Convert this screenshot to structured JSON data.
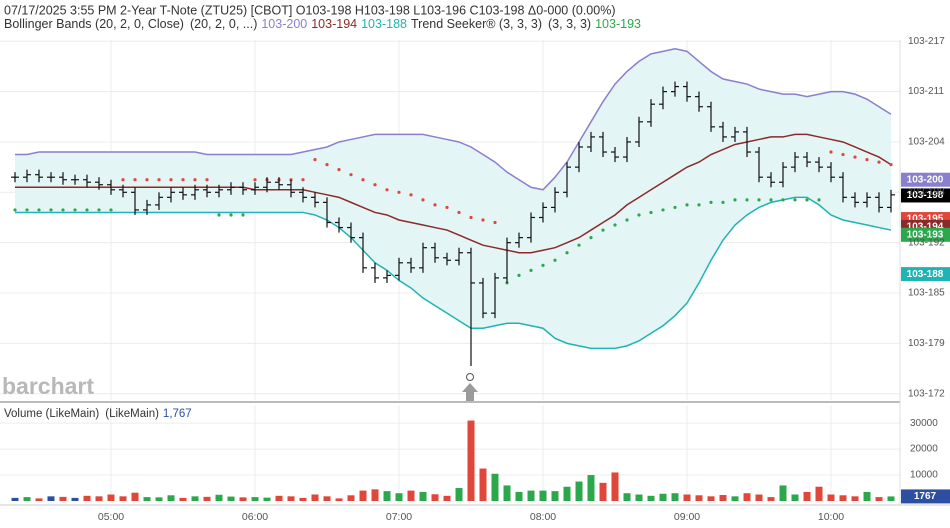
{
  "chart_data": {
    "type": "ohlc",
    "title": "07/17/2025  3:55 PM 2-Year T-Note (ZTU25) [CBOT] O103-198 H103-198 L103-196 C103-198 Δ0-000 (0.00%)",
    "watermark": "barchart",
    "legend": {
      "bb_label": "Bollinger Bands (20, 2, 0, Close)",
      "bb_params": "(20, 2, 0, ...)",
      "upper": "103-200",
      "middle": "103-194",
      "lower": "103-188",
      "trend_label": "Trend Seeker® (3, 3, 3)",
      "trend_params": "(3, 3, 3)",
      "trend": "103-193"
    },
    "categories": [
      null,
      null,
      null,
      null,
      null,
      null,
      null,
      null,
      "05:00",
      null,
      null,
      null,
      null,
      null,
      null,
      null,
      null,
      null,
      null,
      null,
      "06:00",
      null,
      null,
      null,
      null,
      null,
      null,
      null,
      null,
      null,
      null,
      null,
      "07:00",
      null,
      null,
      null,
      null,
      null,
      null,
      null,
      null,
      null,
      null,
      null,
      "08:00",
      null,
      null,
      null,
      null,
      null,
      null,
      null,
      null,
      null,
      null,
      null,
      "09:00",
      null,
      null,
      null,
      null,
      null,
      null,
      null,
      null,
      null,
      null,
      null,
      "10:00",
      null,
      null,
      null,
      null,
      null
    ],
    "open": [
      103.626,
      103.626,
      103.627,
      103.626,
      103.626,
      103.625,
      103.625,
      103.624,
      103.623,
      103.621,
      103.62,
      103.613,
      103.615,
      103.618,
      103.62,
      103.619,
      103.621,
      103.62,
      103.621,
      103.622,
      103.621,
      103.622,
      103.624,
      103.623,
      103.62,
      103.618,
      103.616,
      103.608,
      103.606,
      103.602,
      103.59,
      103.586,
      103.587,
      103.592,
      103.59,
      103.598,
      103.594,
      103.593,
      103.596,
      103.584,
      103.572,
      103.586,
      103.6,
      103.602,
      103.61,
      103.614,
      103.62,
      103.63,
      103.638,
      103.642,
      103.636,
      103.634,
      103.64,
      103.648,
      103.655,
      103.66,
      103.662,
      103.658,
      103.654,
      103.646,
      103.642,
      103.644,
      103.636,
      103.626,
      103.624,
      103.63,
      103.634,
      103.632,
      103.63,
      103.626,
      103.618,
      103.616,
      103.618,
      103.614
    ],
    "high": [
      103.628,
      103.629,
      103.629,
      103.628,
      103.628,
      103.627,
      103.627,
      103.626,
      103.625,
      103.623,
      103.622,
      103.617,
      103.62,
      103.622,
      103.622,
      103.623,
      103.623,
      103.623,
      103.624,
      103.624,
      103.624,
      103.626,
      103.626,
      103.625,
      103.622,
      103.62,
      103.618,
      103.61,
      103.608,
      103.604,
      103.592,
      103.589,
      103.594,
      103.594,
      103.6,
      103.6,
      103.596,
      103.598,
      103.598,
      103.586,
      103.588,
      103.602,
      103.604,
      103.612,
      103.616,
      103.622,
      103.632,
      103.64,
      103.644,
      103.644,
      103.638,
      103.642,
      103.65,
      103.657,
      103.662,
      103.664,
      103.664,
      103.66,
      103.656,
      103.648,
      103.646,
      103.646,
      103.638,
      103.628,
      103.632,
      103.636,
      103.636,
      103.634,
      103.632,
      103.628,
      103.62,
      103.62,
      103.62,
      103.621
    ],
    "low": [
      103.624,
      103.624,
      103.624,
      103.624,
      103.623,
      103.623,
      103.622,
      103.621,
      103.619,
      103.618,
      103.611,
      103.611,
      103.613,
      103.616,
      103.617,
      103.617,
      103.618,
      103.618,
      103.619,
      103.619,
      103.619,
      103.62,
      103.621,
      103.618,
      103.616,
      103.614,
      103.606,
      103.604,
      103.6,
      103.588,
      103.584,
      103.584,
      103.585,
      103.588,
      103.588,
      103.592,
      103.591,
      103.591,
      103.551,
      103.57,
      103.57,
      103.584,
      103.598,
      103.6,
      103.608,
      103.612,
      103.618,
      103.628,
      103.636,
      103.634,
      103.632,
      103.632,
      103.638,
      103.646,
      103.653,
      103.658,
      103.656,
      103.652,
      103.644,
      103.64,
      103.64,
      103.634,
      103.624,
      103.622,
      103.622,
      103.628,
      103.63,
      103.628,
      103.624,
      103.616,
      103.614,
      103.614,
      103.612,
      103.612
    ],
    "close": [
      103.626,
      103.627,
      103.626,
      103.626,
      103.625,
      103.625,
      103.624,
      103.623,
      103.621,
      103.62,
      103.613,
      103.615,
      103.618,
      103.62,
      103.619,
      103.621,
      103.62,
      103.621,
      103.622,
      103.621,
      103.622,
      103.624,
      103.623,
      103.62,
      103.618,
      103.616,
      103.608,
      103.606,
      103.602,
      103.59,
      103.586,
      103.587,
      103.592,
      103.59,
      103.598,
      103.594,
      103.593,
      103.596,
      103.584,
      103.572,
      103.586,
      103.6,
      103.602,
      103.61,
      103.614,
      103.62,
      103.63,
      103.638,
      103.642,
      103.636,
      103.634,
      103.64,
      103.648,
      103.655,
      103.66,
      103.662,
      103.658,
      103.654,
      103.646,
      103.642,
      103.644,
      103.636,
      103.626,
      103.624,
      103.63,
      103.634,
      103.632,
      103.63,
      103.626,
      103.618,
      103.616,
      103.618,
      103.614,
      103.619
    ],
    "bollinger": {
      "fill": "#e4f5f5",
      "upper": {
        "color": "#8a7fcc",
        "values": [
          103.635,
          103.635,
          103.636,
          103.636,
          103.636,
          103.636,
          103.636,
          103.636,
          103.636,
          103.636,
          103.636,
          103.636,
          103.636,
          103.636,
          103.636,
          103.636,
          103.635,
          103.635,
          103.635,
          103.635,
          103.635,
          103.635,
          103.635,
          103.635,
          103.636,
          103.637,
          103.638,
          103.64,
          103.641,
          103.642,
          103.643,
          103.643,
          103.643,
          103.643,
          103.643,
          103.642,
          103.641,
          103.64,
          103.638,
          103.635,
          103.632,
          103.628,
          103.625,
          103.622,
          103.621,
          103.626,
          103.632,
          103.64,
          103.648,
          103.656,
          103.663,
          103.668,
          103.672,
          103.675,
          103.676,
          103.677,
          103.676,
          103.672,
          103.668,
          103.665,
          103.664,
          103.663,
          103.661,
          103.66,
          103.659,
          103.659,
          103.658,
          103.659,
          103.66,
          103.66,
          103.659,
          103.657,
          103.654,
          103.651
        ]
      },
      "middle": {
        "color": "#8b2a2a",
        "values": [
          103.622,
          103.622,
          103.622,
          103.622,
          103.622,
          103.622,
          103.622,
          103.622,
          103.622,
          103.622,
          103.622,
          103.622,
          103.622,
          103.622,
          103.622,
          103.622,
          103.622,
          103.622,
          103.622,
          103.622,
          103.621,
          103.621,
          103.621,
          103.621,
          103.621,
          103.62,
          103.619,
          103.618,
          103.616,
          103.614,
          103.612,
          103.611,
          103.609,
          103.608,
          103.607,
          103.606,
          103.605,
          103.603,
          103.601,
          103.599,
          103.598,
          103.597,
          103.596,
          103.596,
          103.597,
          103.598,
          103.6,
          103.602,
          103.605,
          103.608,
          103.611,
          103.615,
          103.618,
          103.621,
          103.624,
          103.627,
          103.63,
          103.632,
          103.635,
          103.637,
          103.639,
          103.64,
          103.641,
          103.642,
          103.642,
          103.643,
          103.643,
          103.642,
          103.641,
          103.64,
          103.638,
          103.636,
          103.634,
          103.631
        ]
      },
      "lower": {
        "color": "#1fb3b3",
        "values": [
          103.612,
          103.612,
          103.612,
          103.612,
          103.612,
          103.612,
          103.612,
          103.612,
          103.612,
          103.612,
          103.612,
          103.612,
          103.612,
          103.612,
          103.612,
          103.612,
          103.612,
          103.612,
          103.612,
          103.612,
          103.612,
          103.612,
          103.612,
          103.612,
          103.612,
          103.611,
          103.609,
          103.606,
          103.602,
          103.597,
          103.592,
          103.589,
          103.585,
          103.582,
          103.578,
          103.575,
          103.572,
          103.569,
          103.566,
          103.566,
          103.567,
          103.568,
          103.568,
          103.567,
          103.566,
          103.562,
          103.56,
          103.559,
          103.558,
          103.558,
          103.558,
          103.559,
          103.561,
          103.564,
          103.567,
          103.571,
          103.576,
          103.584,
          103.593,
          103.601,
          103.607,
          103.611,
          103.614,
          103.616,
          103.617,
          103.618,
          103.618,
          103.615,
          103.611,
          103.609,
          103.608,
          103.607,
          103.606,
          103.605
        ]
      }
    },
    "trend": {
      "up_color": "#2ca84c",
      "down_color": "#e0463a",
      "up": [
        103.613,
        103.613,
        103.613,
        103.613,
        103.613,
        103.613,
        103.613,
        103.613,
        103.613,
        null,
        null,
        null,
        null,
        null,
        null,
        null,
        null,
        103.611,
        103.611,
        103.611,
        null,
        null,
        null,
        null,
        null,
        null,
        null,
        null,
        null,
        null,
        null,
        null,
        null,
        null,
        null,
        null,
        null,
        null,
        null,
        null,
        null,
        103.584,
        103.587,
        103.589,
        103.591,
        103.593,
        103.596,
        103.599,
        103.602,
        103.605,
        103.607,
        103.609,
        103.611,
        103.612,
        103.613,
        103.614,
        103.615,
        103.615,
        103.616,
        103.616,
        103.617,
        103.617,
        103.617,
        103.617,
        103.617,
        103.617,
        103.617,
        103.617,
        null,
        null,
        null,
        null,
        null,
        null
      ],
      "down": [
        null,
        null,
        null,
        null,
        null,
        null,
        null,
        null,
        null,
        103.625,
        103.625,
        103.625,
        103.625,
        103.625,
        103.625,
        103.625,
        103.625,
        null,
        null,
        null,
        103.625,
        103.625,
        103.625,
        103.625,
        103.625,
        103.633,
        103.631,
        103.629,
        103.627,
        103.625,
        103.623,
        103.621,
        103.62,
        103.619,
        103.617,
        103.615,
        103.614,
        103.612,
        103.61,
        103.609,
        103.608,
        null,
        null,
        null,
        null,
        null,
        null,
        null,
        null,
        null,
        null,
        null,
        null,
        null,
        null,
        null,
        null,
        null,
        null,
        null,
        null,
        null,
        null,
        null,
        null,
        null,
        null,
        null,
        103.636,
        103.635,
        103.634,
        103.633,
        103.632,
        103.631
      ]
    },
    "ylim": [
      103.5375,
      103.6805
    ],
    "yticks": [
      {
        "value": 103.68,
        "label": "103-217"
      },
      {
        "value": 103.66,
        "label": "103-211"
      },
      {
        "value": 103.64,
        "label": "103-204"
      },
      {
        "value": 103.62,
        "label": "103-198"
      },
      {
        "value": 103.6,
        "label": "103-192"
      },
      {
        "value": 103.58,
        "label": "103-185"
      },
      {
        "value": 103.56,
        "label": "103-179"
      },
      {
        "value": 103.54,
        "label": "103-172"
      }
    ],
    "price_tags": [
      {
        "value": 103.625,
        "label": "103-200",
        "color": "#8a7fcc"
      },
      {
        "value": 103.61875,
        "label": "103-198",
        "color": "#000000"
      },
      {
        "value": 103.609375,
        "label": "103-195",
        "color": "#e0463a"
      },
      {
        "value": 103.60625,
        "label": "103-194",
        "color": "#8b2a2a"
      },
      {
        "value": 103.603125,
        "label": "103-193",
        "color": "#2ca84c"
      },
      {
        "value": 103.5875,
        "label": "103-188",
        "color": "#1fb3b3"
      }
    ],
    "grid": true,
    "volume": {
      "label": "Volume (LikeMain)",
      "params": "(LikeMain)",
      "last_label": "1,767",
      "up_color": "#2ca84c",
      "down_color": "#e0463a",
      "flat_color": "#2d4fa3",
      "values": [
        1200,
        1500,
        1000,
        1800,
        1600,
        1200,
        2000,
        1800,
        2500,
        1800,
        3200,
        1500,
        1400,
        2200,
        1200,
        1800,
        1600,
        2400,
        1700,
        1400,
        1500,
        1300,
        2000,
        1800,
        1200,
        2500,
        1800,
        1000,
        2200,
        4000,
        4500,
        3800,
        3000,
        4000,
        3500,
        2600,
        2000,
        5000,
        31000,
        12500,
        10500,
        6000,
        3500,
        4000,
        4000,
        3800,
        5500,
        7500,
        10000,
        7000,
        11000,
        3000,
        2500,
        2000,
        2800,
        3000,
        2500,
        2200,
        1800,
        2300,
        1800,
        3000,
        2500,
        1500,
        6000,
        2500,
        3500,
        5500,
        2500,
        2200,
        1800,
        3500,
        1500,
        1767
      ],
      "ylim": [
        0,
        37000
      ],
      "yticks": [
        10000,
        20000,
        30000
      ]
    }
  }
}
